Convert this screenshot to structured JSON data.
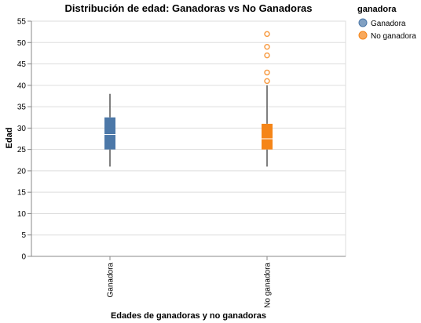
{
  "chart_data": {
    "type": "boxplot",
    "title": "Distribución de edad: Ganadoras vs No Ganadoras",
    "xlabel": "Edades de ganadoras y no ganadoras",
    "ylabel": "Edad",
    "ylim": [
      0,
      55
    ],
    "yticks": [
      0,
      5,
      10,
      15,
      20,
      25,
      30,
      35,
      40,
      45,
      50,
      55
    ],
    "grid": true,
    "legend": {
      "title": "ganadora",
      "position": "top-right",
      "entries": [
        "Ganadora",
        "No ganadora"
      ]
    },
    "categories": [
      "Ganadora",
      "No ganadora"
    ],
    "series": [
      {
        "name": "Ganadora",
        "color": "#4c78a8",
        "min": 21,
        "q1": 25,
        "median": 28.5,
        "q3": 32.5,
        "max": 38,
        "outliers": []
      },
      {
        "name": "No ganadora",
        "color": "#f58518",
        "min": 21,
        "q1": 25,
        "median": 27.5,
        "q3": 31,
        "max": 40,
        "outliers": [
          41,
          43,
          47,
          49,
          52
        ]
      }
    ]
  }
}
